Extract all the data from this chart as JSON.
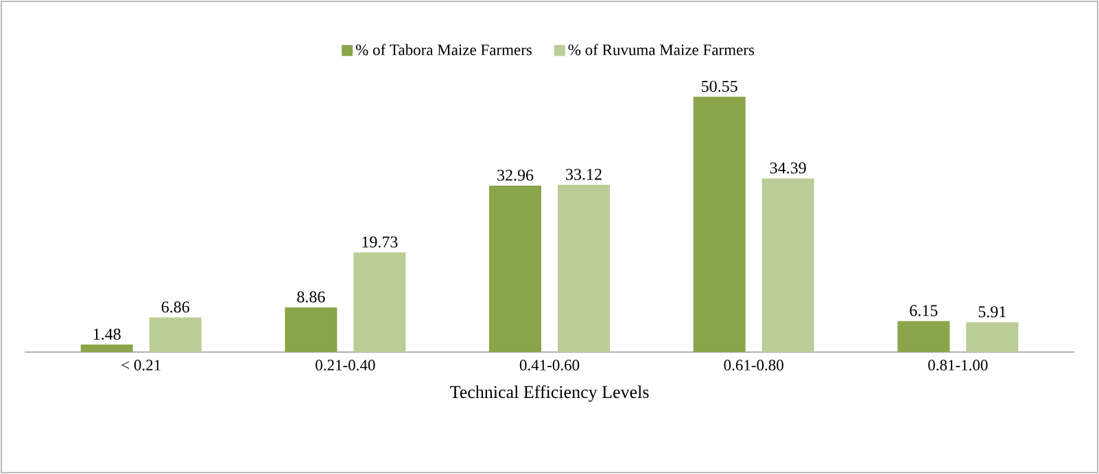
{
  "chart_data": {
    "type": "bar",
    "xlabel": "Technical Efficiency Levels",
    "categories": [
      "< 0.21",
      "0.21-0.40",
      "0.41-0.60",
      "0.61-0.80",
      "0.81-1.00"
    ],
    "series": [
      {
        "name": "% of Tabora Maize Farmers",
        "color": "#8aa54a",
        "values": [
          1.48,
          8.86,
          32.96,
          50.55,
          6.15
        ]
      },
      {
        "name": "% of Ruvuma Maize Farmers",
        "color": "#bacd96",
        "values": [
          6.86,
          19.73,
          33.12,
          34.39,
          5.91
        ]
      }
    ],
    "data_labels": true,
    "legend": "top",
    "grid": false,
    "tick_labels": "x"
  }
}
